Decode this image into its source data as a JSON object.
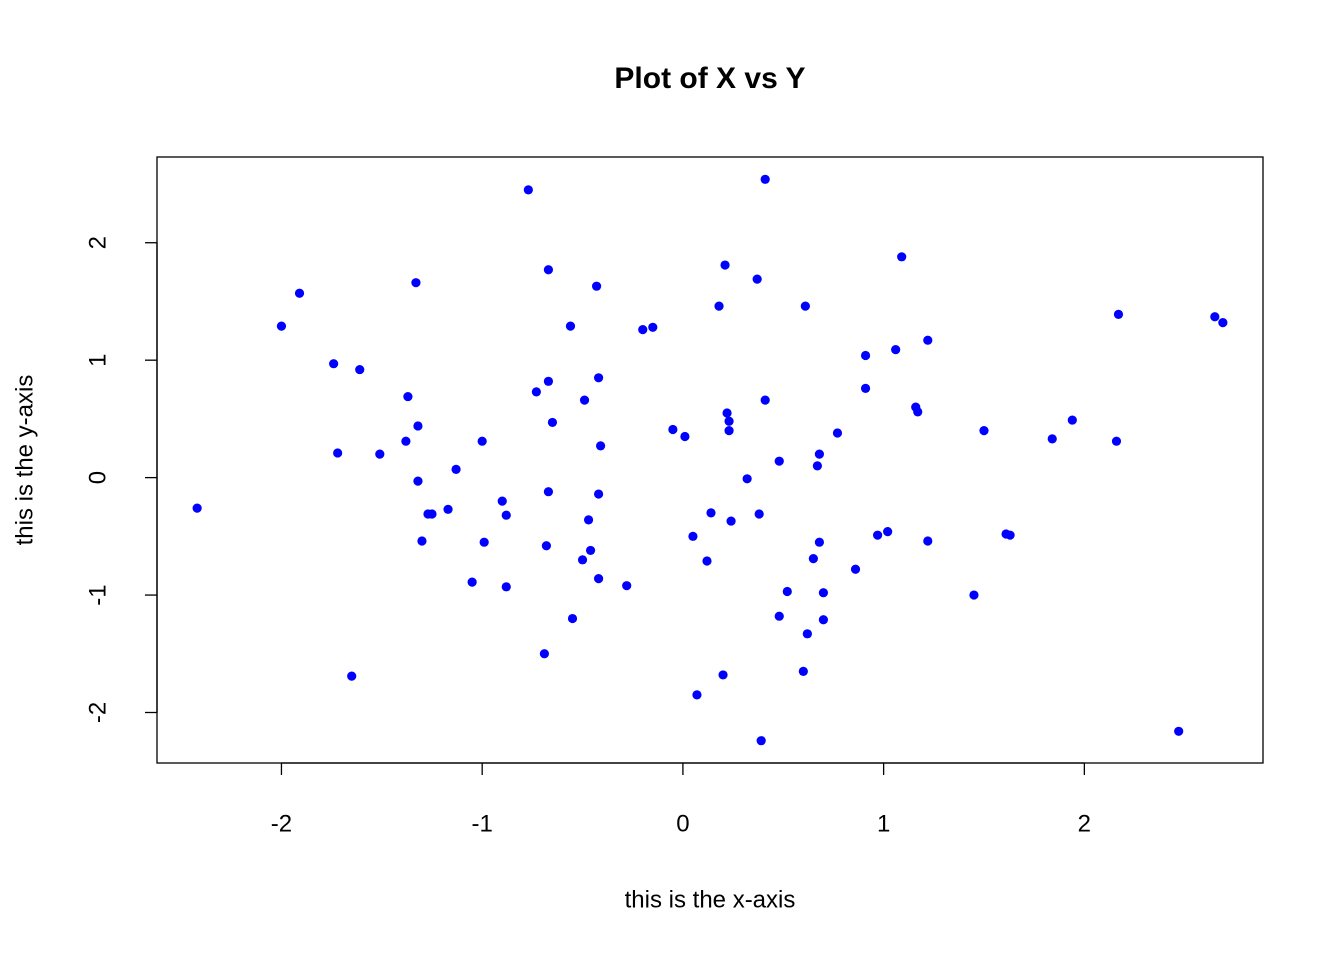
{
  "chart_data": {
    "type": "scatter",
    "title": "Plot of X vs Y",
    "x_label": "this is the x-axis",
    "y_label": "this is the y-axis",
    "color": "#0000ff",
    "xlim": [
      -2.62,
      2.89
    ],
    "ylim": [
      -2.43,
      2.73
    ],
    "xticks": [
      -2,
      -1,
      0,
      1,
      2
    ],
    "yticks": [
      -2,
      -1,
      0,
      1,
      2
    ],
    "x": [
      -2.42,
      -2.0,
      -1.91,
      -1.74,
      -1.72,
      -1.65,
      -1.61,
      -1.51,
      -1.37,
      -1.38,
      -1.33,
      -1.32,
      -1.32,
      -1.3,
      -1.27,
      -1.25,
      -1.17,
      -1.13,
      -1.05,
      -1.0,
      -0.99,
      -0.9,
      -0.88,
      -0.88,
      -0.77,
      -0.73,
      -0.69,
      -0.68,
      -0.67,
      -0.67,
      -0.67,
      -0.65,
      -0.56,
      -0.55,
      -0.5,
      -0.49,
      -0.47,
      -0.46,
      -0.43,
      -0.42,
      -0.42,
      -0.42,
      -0.41,
      -0.28,
      -0.2,
      -0.15,
      -0.05,
      0.01,
      0.05,
      0.07,
      0.12,
      0.14,
      0.18,
      0.2,
      0.21,
      0.22,
      0.23,
      0.23,
      0.24,
      0.32,
      0.37,
      0.38,
      0.39,
      0.41,
      0.41,
      0.48,
      0.48,
      0.52,
      0.6,
      0.61,
      0.62,
      0.65,
      0.67,
      0.68,
      0.68,
      0.7,
      0.7,
      0.77,
      0.86,
      0.91,
      0.91,
      0.97,
      1.02,
      1.06,
      1.09,
      1.16,
      1.17,
      1.22,
      1.22,
      1.45,
      1.5,
      1.61,
      1.63,
      1.84,
      1.94,
      2.16,
      2.17,
      2.47,
      2.65,
      2.69
    ],
    "values": [
      -0.26,
      1.29,
      1.57,
      0.97,
      0.21,
      -1.69,
      0.92,
      0.2,
      0.69,
      0.31,
      1.66,
      0.44,
      -0.03,
      -0.54,
      -0.31,
      -0.31,
      -0.27,
      0.07,
      -0.89,
      0.31,
      -0.55,
      -0.2,
      -0.32,
      -0.93,
      2.45,
      0.73,
      -1.5,
      -0.58,
      1.77,
      0.82,
      -0.12,
      0.47,
      1.29,
      -1.2,
      -0.7,
      0.66,
      -0.36,
      -0.62,
      1.63,
      -0.14,
      -0.86,
      0.85,
      0.27,
      -0.92,
      1.26,
      1.28,
      0.41,
      0.35,
      -0.5,
      -1.85,
      -0.71,
      -0.3,
      1.46,
      -1.68,
      1.81,
      0.55,
      0.48,
      0.4,
      -0.37,
      -0.01,
      1.69,
      -0.31,
      -2.24,
      2.54,
      0.66,
      0.14,
      -1.18,
      -0.97,
      -1.65,
      1.46,
      -1.33,
      -0.69,
      0.1,
      -0.55,
      0.2,
      -1.21,
      -0.98,
      0.38,
      -0.78,
      1.04,
      0.76,
      -0.49,
      -0.46,
      1.09,
      1.88,
      0.6,
      0.56,
      1.17,
      -0.54,
      -1.0,
      0.4,
      -0.48,
      -0.49,
      0.33,
      0.49,
      0.31,
      1.39,
      -2.16,
      1.37,
      1.32
    ]
  }
}
